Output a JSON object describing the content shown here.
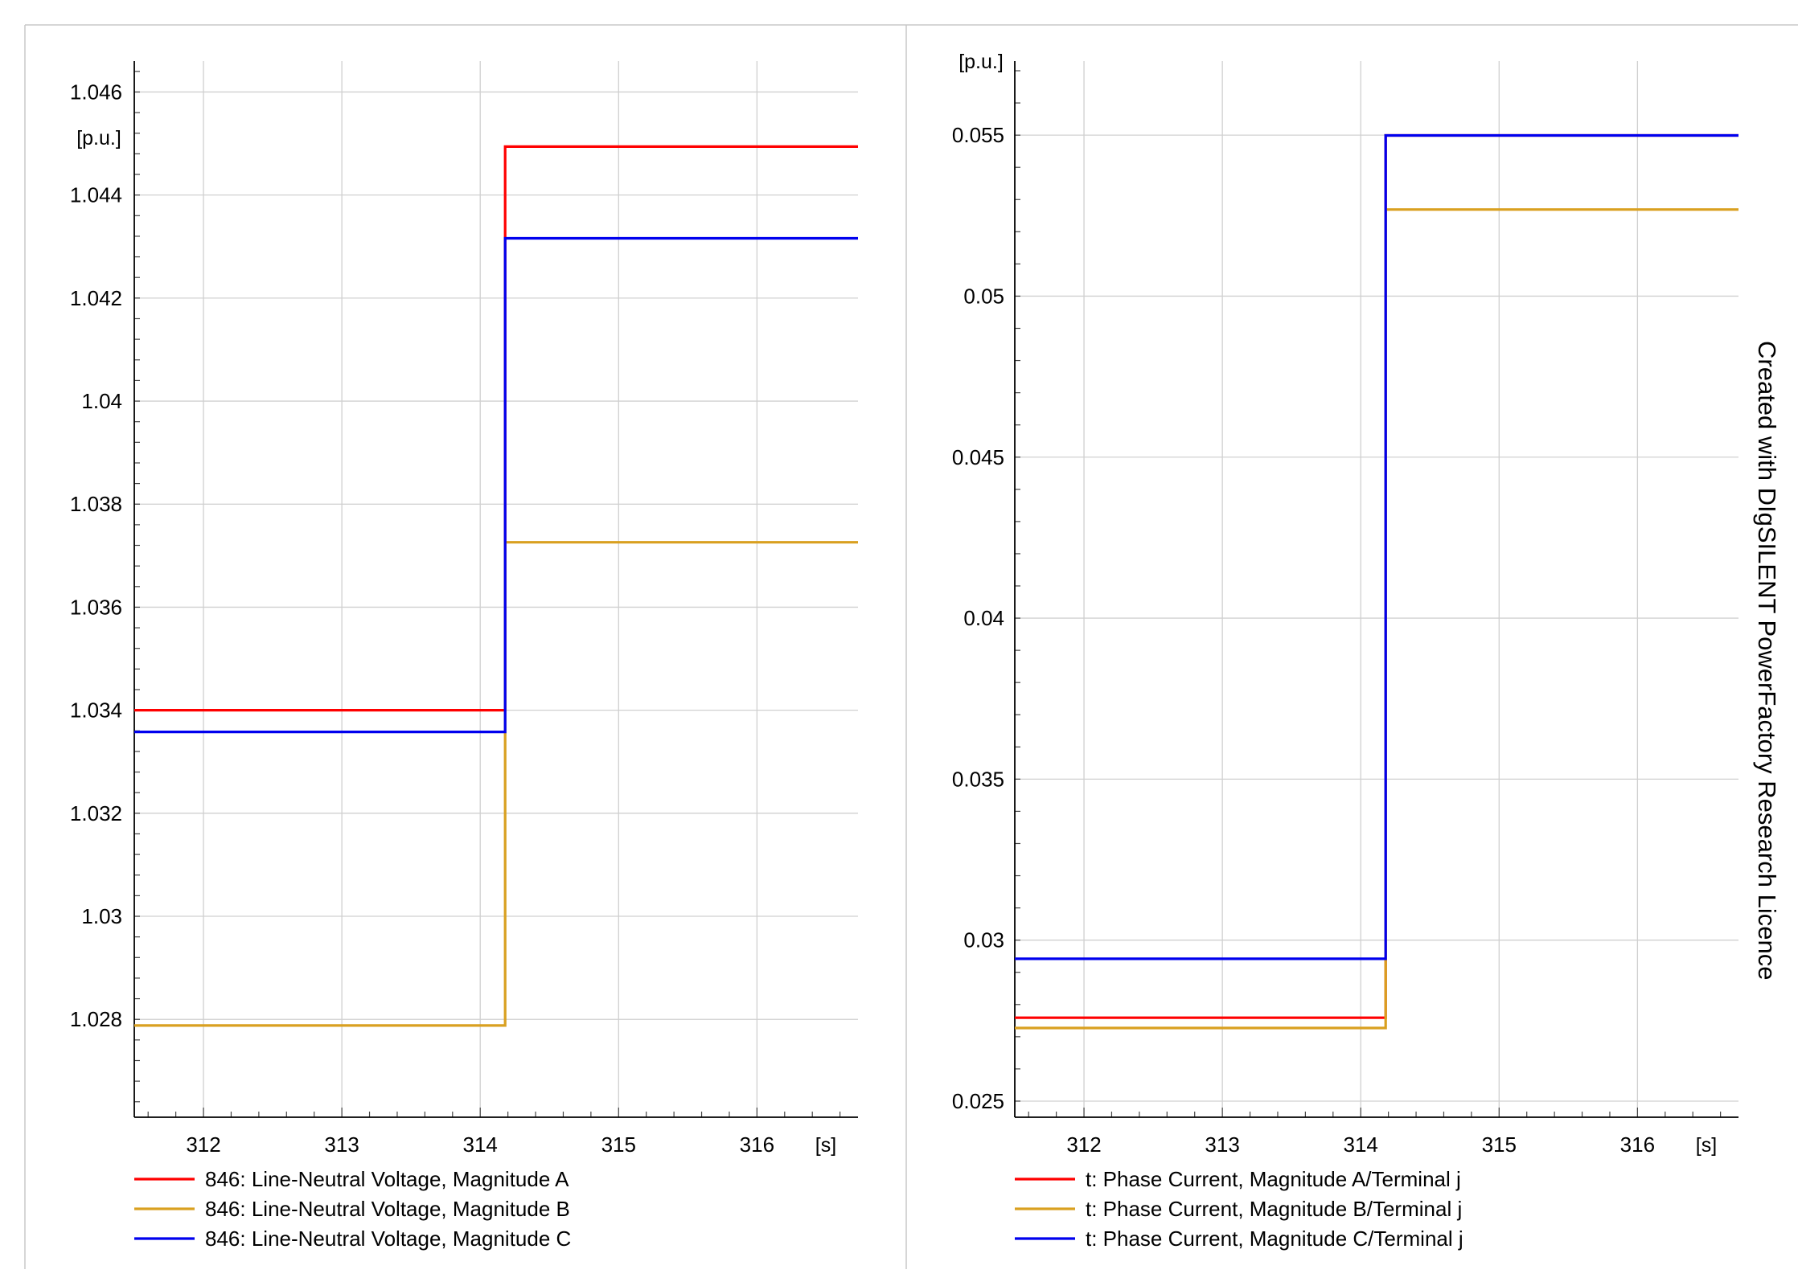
{
  "watermark": "Created with DIgSILENT PowerFactory Research Licence",
  "chart_data": [
    {
      "type": "line",
      "title": "",
      "xlabel": "[s]",
      "ylabel": "[p.u.]",
      "xlim": [
        311.5,
        316.73
      ],
      "ylim": [
        1.0261,
        1.0466
      ],
      "xticks": [
        312,
        313,
        314,
        315,
        316
      ],
      "xtick_labels": [
        "312",
        "313",
        "314",
        "315",
        "316"
      ],
      "yticks": [
        1.028,
        1.03,
        1.032,
        1.034,
        1.036,
        1.038,
        1.04,
        1.042,
        1.044,
        1.046
      ],
      "ytick_labels": [
        "1.028",
        "1.03",
        "1.032",
        "1.034",
        "1.036",
        "1.038",
        "1.04",
        "1.042",
        "1.044",
        "1.046"
      ],
      "grid": true,
      "legend_position": "bottom-left",
      "series": [
        {
          "name": "846: Line-Neutral Voltage, Magnitude A",
          "color": "#ff0000",
          "x": [
            311.5,
            314.18,
            314.18,
            316.73
          ],
          "y": [
            1.034,
            1.034,
            1.04494,
            1.04494
          ]
        },
        {
          "name": "846: Line-Neutral Voltage, Magnitude B",
          "color": "#d9a020",
          "x": [
            311.5,
            314.18,
            314.18,
            316.73
          ],
          "y": [
            1.02788,
            1.02788,
            1.03726,
            1.03726
          ]
        },
        {
          "name": "846: Line-Neutral Voltage, Magnitude C",
          "color": "#0000ee",
          "x": [
            311.5,
            314.18,
            314.18,
            316.73
          ],
          "y": [
            1.03358,
            1.03358,
            1.04316,
            1.04316
          ]
        }
      ]
    },
    {
      "type": "line",
      "title": "",
      "xlabel": "[s]",
      "ylabel": "[p.u.]",
      "xlim": [
        311.5,
        316.73
      ],
      "ylim": [
        0.0245,
        0.0573
      ],
      "xticks": [
        312,
        313,
        314,
        315,
        316
      ],
      "xtick_labels": [
        "312",
        "313",
        "314",
        "315",
        "316"
      ],
      "yticks": [
        0.025,
        0.03,
        0.035,
        0.04,
        0.045,
        0.05,
        0.055
      ],
      "ytick_labels": [
        "0.025",
        "0.03",
        "0.035",
        "0.04",
        "0.045",
        "0.05",
        "0.055"
      ],
      "grid": true,
      "legend_position": "bottom-left",
      "series": [
        {
          "name": "t: Phase Current, Magnitude A/Terminal j",
          "color": "#ff0000",
          "x": [
            311.5,
            314.18,
            314.18,
            316.73
          ],
          "y": [
            0.02759,
            0.02759,
            0.05499,
            0.05499
          ]
        },
        {
          "name": "t: Phase Current, Magnitude B/Terminal j",
          "color": "#d9a020",
          "x": [
            311.5,
            314.18,
            314.18,
            316.73
          ],
          "y": [
            0.02727,
            0.02727,
            0.05269,
            0.05269
          ]
        },
        {
          "name": "t: Phase Current, Magnitude C/Terminal j",
          "color": "#0000ee",
          "x": [
            311.5,
            314.18,
            314.18,
            316.73
          ],
          "y": [
            0.02942,
            0.02942,
            0.05499,
            0.05499
          ]
        }
      ]
    }
  ]
}
